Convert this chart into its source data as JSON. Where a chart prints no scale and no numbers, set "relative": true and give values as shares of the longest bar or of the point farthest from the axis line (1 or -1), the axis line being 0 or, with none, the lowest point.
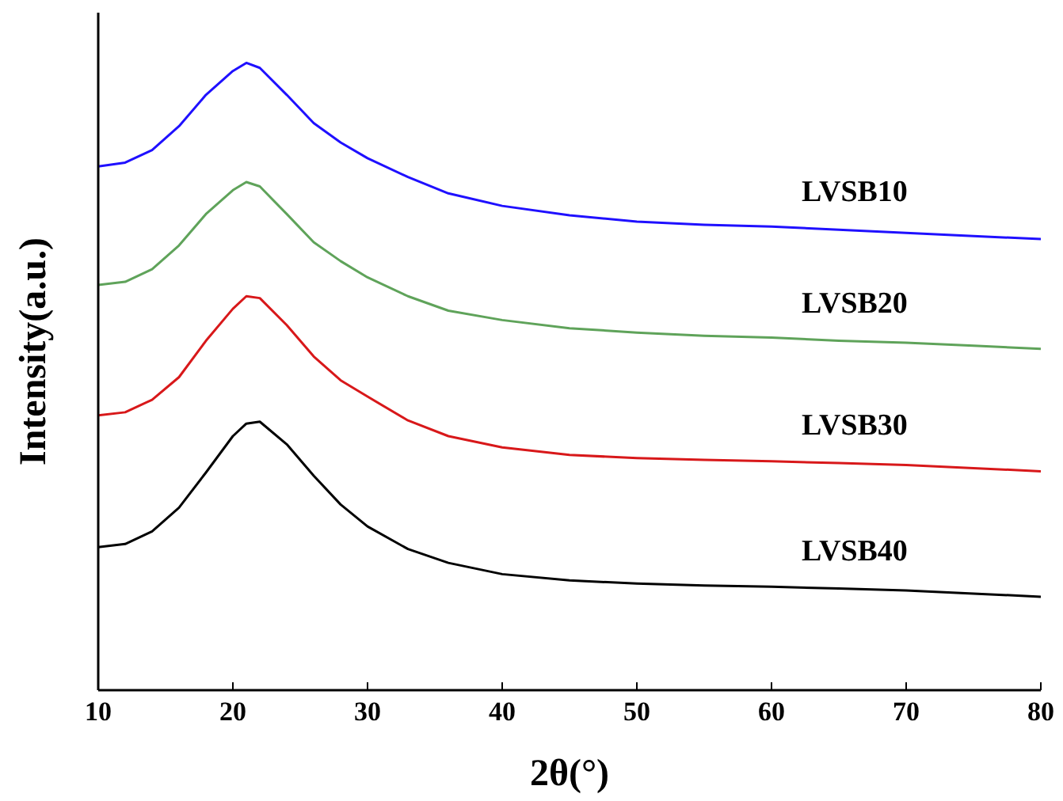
{
  "chart_data": {
    "type": "line",
    "xlabel": "2θ(°)",
    "ylabel": "Intensity(a.u.)",
    "relative": true,
    "tick_labels": "x",
    "xlim": [
      10,
      80
    ],
    "xticks": [
      10,
      20,
      30,
      40,
      50,
      60,
      70,
      80
    ],
    "x": [
      10,
      12,
      14,
      16,
      18,
      20,
      21,
      22,
      24,
      26,
      28,
      30,
      33,
      36,
      40,
      45,
      50,
      55,
      60,
      65,
      70,
      75,
      80
    ],
    "series": [
      {
        "name": "LVSB10",
        "color": "#1f10ff",
        "values": [
          0.835,
          0.841,
          0.861,
          0.899,
          0.949,
          0.987,
          1.0,
          0.992,
          0.949,
          0.904,
          0.873,
          0.848,
          0.818,
          0.792,
          0.772,
          0.757,
          0.747,
          0.742,
          0.739,
          0.734,
          0.729,
          0.724,
          0.719
        ]
      },
      {
        "name": "LVSB20",
        "color": "#5fa35a",
        "values": [
          0.646,
          0.651,
          0.671,
          0.709,
          0.759,
          0.797,
          0.81,
          0.803,
          0.759,
          0.714,
          0.684,
          0.658,
          0.628,
          0.605,
          0.59,
          0.577,
          0.57,
          0.565,
          0.562,
          0.557,
          0.554,
          0.549,
          0.544
        ]
      },
      {
        "name": "LVSB30",
        "color": "#d8181a",
        "values": [
          0.438,
          0.443,
          0.463,
          0.499,
          0.557,
          0.608,
          0.628,
          0.625,
          0.582,
          0.532,
          0.494,
          0.468,
          0.43,
          0.405,
          0.387,
          0.375,
          0.37,
          0.367,
          0.365,
          0.362,
          0.359,
          0.354,
          0.349
        ]
      },
      {
        "name": "LVSB40",
        "color": "#000000",
        "values": [
          0.228,
          0.233,
          0.253,
          0.291,
          0.347,
          0.405,
          0.425,
          0.428,
          0.392,
          0.342,
          0.296,
          0.261,
          0.225,
          0.203,
          0.185,
          0.175,
          0.17,
          0.167,
          0.165,
          0.162,
          0.159,
          0.154,
          0.149
        ]
      }
    ]
  }
}
